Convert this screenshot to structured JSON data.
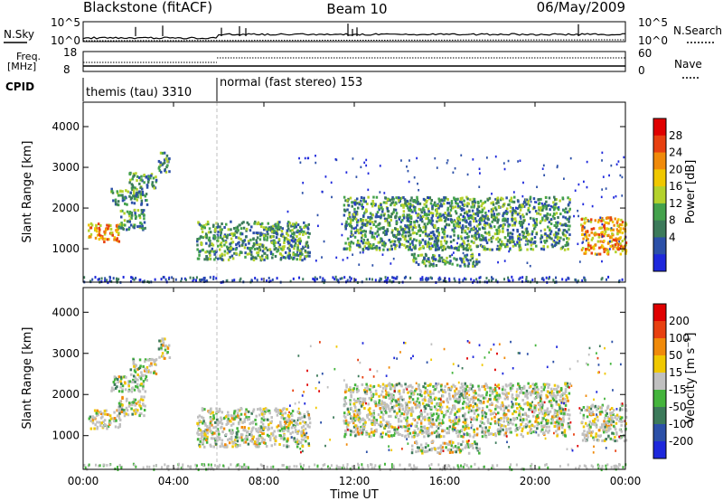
{
  "header": {
    "title_left": "Blackstone (fitACF)",
    "title_center": "Beam 10",
    "title_right": "06/May/2009"
  },
  "top_panels": {
    "nsky": {
      "left_label": "N.Sky",
      "right_label": "N.Search",
      "left_ticks": [
        "10^5",
        "10^0"
      ],
      "right_ticks": [
        "10^5",
        "10^0"
      ]
    },
    "freq": {
      "left_label_1": "Freq.",
      "left_label_2": "[MHz]",
      "left_ticks": [
        "18",
        "8"
      ],
      "right_label": "Nave",
      "right_ticks": [
        "60",
        "0"
      ]
    },
    "cpid": {
      "label": "CPID",
      "modes": [
        {
          "name": "themis (tau) 3310",
          "start_hour": 0,
          "end_hour": 6
        },
        {
          "name": "normal (fast stereo) 153",
          "start_hour": 6,
          "end_hour": 24
        }
      ]
    }
  },
  "chart_data": [
    {
      "type": "heatmap",
      "id": "power",
      "ylabel": "Slant Range [km]",
      "ylim": [
        180,
        4600
      ],
      "y_ticks": [
        1000,
        2000,
        3000,
        4000
      ],
      "xlim": [
        0,
        24
      ],
      "colorbar": {
        "label": "Power [dB]",
        "ticks": [
          "28",
          "24",
          "20",
          "16",
          "12",
          "8",
          "4"
        ],
        "colors": [
          "#1e28dc",
          "#2c50a8",
          "#3c7a5a",
          "#44a24c",
          "#b4d22c",
          "#f0c800",
          "#f08a0a",
          "#e84010",
          "#e00000"
        ]
      },
      "echo_regions": [
        {
          "x0": 0.2,
          "x1": 1.6,
          "y0": 1200,
          "y1": 1650,
          "level": "high"
        },
        {
          "x0": 1.5,
          "x1": 2.7,
          "y0": 1500,
          "y1": 2000,
          "level": "mid"
        },
        {
          "x0": 1.2,
          "x1": 2.8,
          "y0": 2100,
          "y1": 2500,
          "level": "mid"
        },
        {
          "x0": 2.0,
          "x1": 3.2,
          "y0": 2500,
          "y1": 2900,
          "level": "mid"
        },
        {
          "x0": 3.3,
          "x1": 3.8,
          "y0": 2900,
          "y1": 3400,
          "level": "mid"
        },
        {
          "x0": 5.0,
          "x1": 10.0,
          "y0": 750,
          "y1": 1700,
          "level": "mid"
        },
        {
          "x0": 11.5,
          "x1": 21.5,
          "y0": 1000,
          "y1": 2300,
          "level": "mid"
        },
        {
          "x0": 14.5,
          "x1": 17.5,
          "y0": 600,
          "y1": 900,
          "level": "mid"
        },
        {
          "x0": 22.0,
          "x1": 24.0,
          "y0": 900,
          "y1": 1800,
          "level": "high"
        }
      ]
    },
    {
      "type": "heatmap",
      "id": "velocity",
      "ylabel": "Slant Range [km]",
      "xlabel": "Time UT",
      "ylim": [
        180,
        4600
      ],
      "y_ticks": [
        1000,
        2000,
        3000,
        4000
      ],
      "xlim": [
        0,
        24
      ],
      "x_ticks": [
        "00:00",
        "04:00",
        "08:00",
        "12:00",
        "16:00",
        "20:00",
        "00:00"
      ],
      "colorbar": {
        "label": "Velocity [m s⁻¹]",
        "ticks": [
          "200",
          "100",
          "50",
          "15",
          "-15",
          "-50",
          "-100",
          "-200"
        ],
        "colors": [
          "#1e28dc",
          "#2c50a8",
          "#3c7a5a",
          "#44b43c",
          "#c0c0c0",
          "#f0c800",
          "#f08a0a",
          "#e84010",
          "#e00000"
        ]
      }
    }
  ],
  "colors": {
    "background": "#ffffff",
    "axis": "#000000",
    "cpid_divider": "#bfbfbf"
  }
}
